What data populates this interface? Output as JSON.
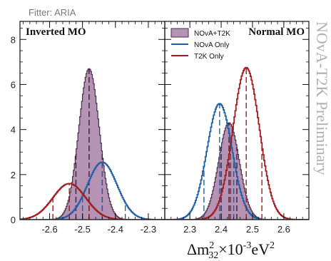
{
  "header": {
    "fitter": "Fitter: ARIA"
  },
  "watermark": "NOvA-T2K Preliminary",
  "chart_data": {
    "type": "area",
    "xlabel": "Δm²₃₂×10⁻³eV²",
    "yticks": [
      "0",
      "2",
      "4",
      "6",
      "8"
    ],
    "ylim": [
      0,
      8.8
    ],
    "legend": {
      "placement": "top-left of right panel",
      "entries": [
        {
          "label": "NOvA+T2K",
          "color": "#9b6f9b",
          "style": "filled"
        },
        {
          "label": "NOvA Only",
          "color": "#1f5fa8",
          "style": "line"
        },
        {
          "label": "T2K Only",
          "color": "#a01c1c",
          "style": "line"
        }
      ]
    },
    "panels": [
      {
        "label": "Inverted MO",
        "xlim": [
          -2.69,
          -2.25
        ],
        "xticks": [
          "-2.6",
          "-2.5",
          "-2.4",
          "-2.3"
        ],
        "xtick_values": [
          -2.6,
          -2.5,
          -2.4,
          -2.3
        ],
        "series": [
          {
            "name": "NOvA+T2K",
            "kind": "filled",
            "mu": -2.48,
            "sigma": 0.031,
            "peak": 6.7,
            "intervals": [
              -2.52,
              -2.48,
              -2.44
            ]
          },
          {
            "name": "NOvA Only",
            "kind": "line",
            "mu": -2.44,
            "sigma": 0.045,
            "peak": 2.55,
            "intervals": [
              -2.5,
              -2.44,
              -2.37
            ]
          },
          {
            "name": "T2K Only",
            "kind": "line",
            "mu": -2.54,
            "sigma": 0.05,
            "peak": 1.6,
            "intervals": [
              -2.59,
              -2.54,
              -2.48
            ]
          }
        ]
      },
      {
        "label": "Normal MO",
        "xlim": [
          2.22,
          2.68
        ],
        "xticks": [
          "2.3",
          "2.4",
          "2.5",
          "2.6"
        ],
        "xtick_values": [
          2.3,
          2.4,
          2.5,
          2.6
        ],
        "series": [
          {
            "name": "NOvA+T2K",
            "kind": "filled",
            "mu": 2.425,
            "sigma": 0.033,
            "peak": 4.3,
            "intervals": [
              2.4,
              2.425,
              2.45
            ]
          },
          {
            "name": "NOvA Only",
            "kind": "line",
            "mu": 2.395,
            "sigma": 0.04,
            "peak": 5.15,
            "intervals": [
              2.345,
              2.395,
              2.44
            ]
          },
          {
            "name": "T2K Only",
            "kind": "line",
            "mu": 2.48,
            "sigma": 0.042,
            "peak": 6.75,
            "intervals": [
              2.43,
              2.48,
              2.53
            ]
          }
        ]
      }
    ]
  }
}
